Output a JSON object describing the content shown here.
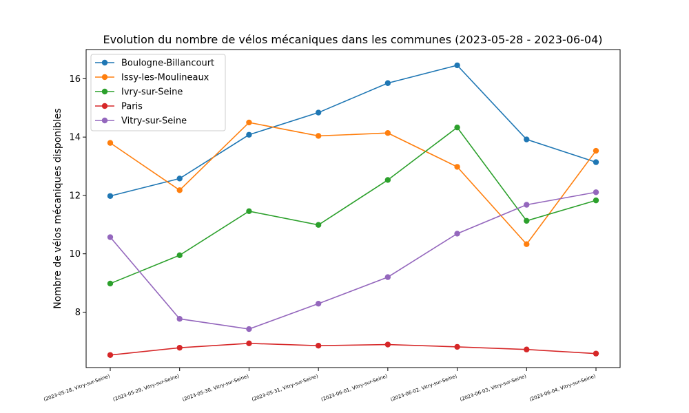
{
  "chart_data": {
    "type": "line",
    "title": "Evolution du nombre de vélos mécaniques dans les communes (2023-05-28 - 2023-06-04)",
    "xlabel": "",
    "ylabel": "Nombre de vélos mécaniques disponibles",
    "categories": [
      "(2023-05-28, Vitry-sur-Seine)",
      "(2023-05-29, Vitry-sur-Seine)",
      "(2023-05-30, Vitry-sur-Seine)",
      "(2023-05-31, Vitry-sur-Seine)",
      "(2023-06-01, Vitry-sur-Seine)",
      "(2023-06-02, Vitry-sur-Seine)",
      "(2023-06-03, Vitry-sur-Seine)",
      "(2023-06-04, Vitry-sur-Seine)"
    ],
    "yticks": [
      8,
      10,
      12,
      14,
      16
    ],
    "ylim": [
      6.1,
      17.0
    ],
    "grid": false,
    "legend_position": "top-left",
    "series": [
      {
        "name": "Boulogne-Billancourt",
        "color": "#1f77b4",
        "values": [
          11.98,
          12.58,
          14.08,
          14.84,
          15.85,
          16.46,
          13.92,
          13.14
        ]
      },
      {
        "name": "Issy-les-Moulineaux",
        "color": "#ff7f0e",
        "values": [
          13.8,
          12.18,
          14.5,
          14.04,
          14.14,
          12.98,
          10.33,
          13.53
        ]
      },
      {
        "name": "Ivry-sur-Seine",
        "color": "#2ca02c",
        "values": [
          8.98,
          9.95,
          11.46,
          10.99,
          12.53,
          14.33,
          11.13,
          11.83
        ]
      },
      {
        "name": "Paris",
        "color": "#d62728",
        "values": [
          6.53,
          6.78,
          6.93,
          6.85,
          6.89,
          6.81,
          6.72,
          6.58
        ]
      },
      {
        "name": "Vitry-sur-Seine",
        "color": "#9467bd",
        "values": [
          10.57,
          7.77,
          7.42,
          8.29,
          9.2,
          10.69,
          11.68,
          12.11
        ]
      }
    ]
  }
}
